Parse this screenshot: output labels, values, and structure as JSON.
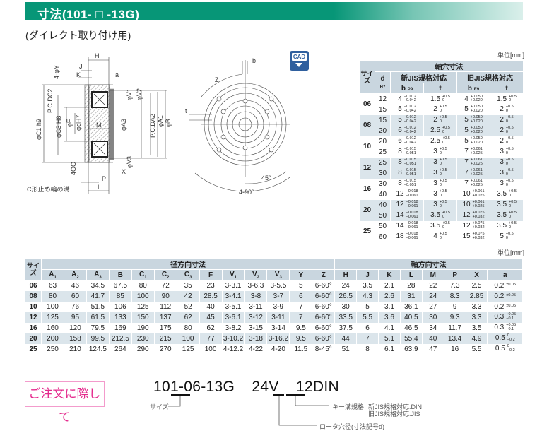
{
  "header": {
    "title": "寸法(101- □ -13G)",
    "subtitle": "(ダイレクト取り付け用)"
  },
  "cad_button": {
    "label": "CAD",
    "icon": "download-arrow-icon",
    "color": "#2f5f9e"
  },
  "colors": {
    "header_green": "#079677",
    "table_header": "#c9d6df",
    "row_shade": "#dbe5eb",
    "order_pink": "#e4288c"
  },
  "drawing": {
    "side": {
      "H": "H",
      "J": "J",
      "K": "K",
      "a": "a",
      "Y": "4-φY",
      "V1": "φV1",
      "V2": "φV2",
      "PCDC2": "P.C.DC2",
      "C1": "φC1 h9",
      "C3": "φC3 H8",
      "F": "φF",
      "dH7": "φdH7",
      "M": "M",
      "A3": "φA3",
      "PCDA2": "P.C.DA2",
      "A1": "φA1",
      "B": "φB",
      "V3": "φV3",
      "OO": "4OO",
      "X": "X",
      "P": "P",
      "L": "L",
      "groove": "C形止め輪の溝"
    },
    "front": {
      "b": "b",
      "Z": "Z",
      "t": "t",
      "a45": "45°",
      "a490": "4-90°"
    }
  },
  "shaft_table": {
    "unit": "単位[mm]",
    "size_header": "サイズ",
    "group_header": "軸穴寸法",
    "d_header": "d",
    "d_sub": "H7",
    "new_jis": "新JIS規格対応",
    "old_jis": "旧JIS規格対応",
    "b_p9": "b",
    "b_p9_sub": "P9",
    "b_e9": "b",
    "b_e9_sub": "E9",
    "t": "t",
    "groups": [
      {
        "size": "06",
        "rows": [
          {
            "d": "12",
            "bp9": [
              "4",
              "−0.012",
              "−0.042"
            ],
            "tn": [
              "1.5",
              "+0.5",
              "0"
            ],
            "be9": [
              "4",
              "+0.050",
              "+0.020"
            ],
            "to": [
              "1.5",
              "+0.5",
              "0"
            ]
          },
          {
            "d": "15",
            "bp9": [
              "5",
              "−0.012",
              "−0.042"
            ],
            "tn": [
              "2",
              "+0.5",
              "0"
            ],
            "be9": [
              "5",
              "+0.050",
              "+0.020"
            ],
            "to": [
              "2",
              "+0.5",
              "0"
            ]
          }
        ]
      },
      {
        "size": "08",
        "rows": [
          {
            "d": "15",
            "bp9": [
              "5",
              "−0.012",
              "−0.042"
            ],
            "tn": [
              "2",
              "+0.5",
              "0"
            ],
            "be9": [
              "5",
              "+0.050",
              "+0.020"
            ],
            "to": [
              "2",
              "+0.5",
              "0"
            ]
          },
          {
            "d": "20",
            "bp9": [
              "6",
              "−0.012",
              "−0.042"
            ],
            "tn": [
              "2.5",
              "+0.5",
              "0"
            ],
            "be9": [
              "5",
              "+0.050",
              "+0.020"
            ],
            "to": [
              "2",
              "+0.5",
              "0"
            ]
          }
        ]
      },
      {
        "size": "10",
        "rows": [
          {
            "d": "20",
            "bp9": [
              "6",
              "−0.012",
              "−0.042"
            ],
            "tn": [
              "2.5",
              "+0.5",
              "0"
            ],
            "be9": [
              "5",
              "+0.050",
              "+0.020"
            ],
            "to": [
              "2",
              "+0.5",
              "0"
            ]
          },
          {
            "d": "25",
            "bp9": [
              "8",
              "−0.015",
              "−0.051"
            ],
            "tn": [
              "3",
              "+0.5",
              "0"
            ],
            "be9": [
              "7",
              "+0.061",
              "+0.025"
            ],
            "to": [
              "3",
              "+0.5",
              "0"
            ]
          }
        ]
      },
      {
        "size": "12",
        "rows": [
          {
            "d": "25",
            "bp9": [
              "8",
              "−0.015",
              "−0.051"
            ],
            "tn": [
              "3",
              "+0.5",
              "0"
            ],
            "be9": [
              "7",
              "+0.061",
              "+0.025"
            ],
            "to": [
              "3",
              "+0.5",
              "0"
            ]
          },
          {
            "d": "30",
            "bp9": [
              "8",
              "−0.015",
              "−0.051"
            ],
            "tn": [
              "3",
              "+0.5",
              "0"
            ],
            "be9": [
              "7",
              "+0.061",
              "+0.025"
            ],
            "to": [
              "3",
              "+0.5",
              "0"
            ]
          }
        ]
      },
      {
        "size": "16",
        "rows": [
          {
            "d": "30",
            "bp9": [
              "8",
              "−0.015",
              "−0.051"
            ],
            "tn": [
              "3",
              "+0.5",
              "0"
            ],
            "be9": [
              "7",
              "+0.061",
              "+0.025"
            ],
            "to": [
              "3",
              "+0.5",
              "0"
            ]
          },
          {
            "d": "40",
            "bp9": [
              "12",
              "−0.018",
              "−0.061"
            ],
            "tn": [
              "3",
              "+0.5",
              "0"
            ],
            "be9": [
              "10",
              "+0.061",
              "+0.025"
            ],
            "to": [
              "3.5",
              "+0.5",
              "0"
            ]
          }
        ]
      },
      {
        "size": "20",
        "rows": [
          {
            "d": "40",
            "bp9": [
              "12",
              "−0.018",
              "−0.061"
            ],
            "tn": [
              "3",
              "+0.5",
              "0"
            ],
            "be9": [
              "10",
              "+0.061",
              "+0.025"
            ],
            "to": [
              "3.5",
              "+0.5",
              "0"
            ]
          },
          {
            "d": "50",
            "bp9": [
              "14",
              "−0.018",
              "−0.061"
            ],
            "tn": [
              "3.5",
              "+0.5",
              "0"
            ],
            "be9": [
              "12",
              "+0.075",
              "+0.032"
            ],
            "to": [
              "3.5",
              "+0.5",
              "0"
            ]
          }
        ]
      },
      {
        "size": "25",
        "rows": [
          {
            "d": "50",
            "bp9": [
              "14",
              "−0.018",
              "−0.061"
            ],
            "tn": [
              "3.5",
              "+0.5",
              "0"
            ],
            "be9": [
              "12",
              "+0.075",
              "+0.032"
            ],
            "to": [
              "3.5",
              "+0.5",
              "0"
            ]
          },
          {
            "d": "60",
            "bp9": [
              "18",
              "−0.018",
              "−0.061"
            ],
            "tn": [
              "4",
              "+0.5",
              "0"
            ],
            "be9": [
              "15",
              "+0.075",
              "+0.032"
            ],
            "to": [
              "5",
              "+0.5",
              "0"
            ]
          }
        ]
      }
    ]
  },
  "dim_table": {
    "unit": "単位[mm]",
    "size_header": "サイズ",
    "radial_header": "径方向寸法",
    "axial_header": "軸方向寸法",
    "radial_cols": [
      "A1",
      "A2",
      "A3",
      "B",
      "C1",
      "C2",
      "C3",
      "F",
      "V1",
      "V2",
      "V3",
      "Y",
      "Z"
    ],
    "axial_cols": [
      "H",
      "J",
      "K",
      "L",
      "M",
      "P",
      "X",
      "a"
    ],
    "rows": [
      {
        "size": "06",
        "radial": [
          "63",
          "46",
          "34.5",
          "67.5",
          "80",
          "72",
          "35",
          "23",
          "3-3.1",
          "3-6.3",
          "3-5.5",
          "5",
          "6-60°"
        ],
        "axial": [
          "24",
          "3.5",
          "2.1",
          "28",
          "22",
          "7.3",
          "2.5"
        ],
        "a": [
          "0.2",
          "±0.05",
          ""
        ]
      },
      {
        "size": "08",
        "radial": [
          "80",
          "60",
          "41.7",
          "85",
          "100",
          "90",
          "42",
          "28.5",
          "3-4.1",
          "3-8",
          "3-7",
          "6",
          "6-60°"
        ],
        "axial": [
          "26.5",
          "4.3",
          "2.6",
          "31",
          "24",
          "8.3",
          "2.85"
        ],
        "a": [
          "0.2",
          "±0.05",
          ""
        ]
      },
      {
        "size": "10",
        "radial": [
          "100",
          "76",
          "51.5",
          "106",
          "125",
          "112",
          "52",
          "40",
          "3-5.1",
          "3-11",
          "3-9",
          "7",
          "6-60°"
        ],
        "axial": [
          "30",
          "5",
          "3.1",
          "36.1",
          "27",
          "9",
          "3.3"
        ],
        "a": [
          "0.2",
          "±0.05",
          ""
        ]
      },
      {
        "size": "12",
        "radial": [
          "125",
          "95",
          "61.5",
          "133",
          "150",
          "137",
          "62",
          "45",
          "3-6.1",
          "3-12",
          "3-11",
          "7",
          "6-60°"
        ],
        "axial": [
          "33.5",
          "5.5",
          "3.6",
          "40.5",
          "30",
          "9.3",
          "3.3"
        ],
        "a": [
          "0.3",
          "+0.05",
          "−0.1"
        ]
      },
      {
        "size": "16",
        "radial": [
          "160",
          "120",
          "79.5",
          "169",
          "190",
          "175",
          "80",
          "62",
          "3-8.2",
          "3-15",
          "3-14",
          "9.5",
          "6-60°"
        ],
        "axial": [
          "37.5",
          "6",
          "4.1",
          "46.5",
          "34",
          "11.7",
          "3.5"
        ],
        "a": [
          "0.3",
          "+0.05",
          "−0.1"
        ]
      },
      {
        "size": "20",
        "radial": [
          "200",
          "158",
          "99.5",
          "212.5",
          "230",
          "215",
          "100",
          "77",
          "3-10.2",
          "3-18",
          "3-16.2",
          "9.5",
          "6-60°"
        ],
        "axial": [
          "44",
          "7",
          "5.1",
          "55.4",
          "40",
          "13.4",
          "4.9"
        ],
        "a": [
          "0.5",
          "0",
          "−0.2"
        ]
      },
      {
        "size": "25",
        "radial": [
          "250",
          "210",
          "124.5",
          "264",
          "290",
          "270",
          "125",
          "100",
          "4-12.2",
          "4-22",
          "4-20",
          "11.5",
          "8-45°"
        ],
        "axial": [
          "51",
          "8",
          "6.1",
          "63.9",
          "47",
          "16",
          "5.5"
        ],
        "a": [
          "0.5",
          "0",
          "−0.2"
        ]
      }
    ]
  },
  "order": {
    "button": "ご注文に際して",
    "code_base": "101-",
    "code_size": "06",
    "code_mid": "-13G  24V  ",
    "code_bore": "12",
    "code_key": "DIN",
    "size_label": "サイズ",
    "key_label": "キー溝規格",
    "key_new": "新JIS規格対応:DIN",
    "key_old": "旧JIS規格対応:JIS",
    "bore_label": "ロータ穴径(寸法記号d)"
  }
}
